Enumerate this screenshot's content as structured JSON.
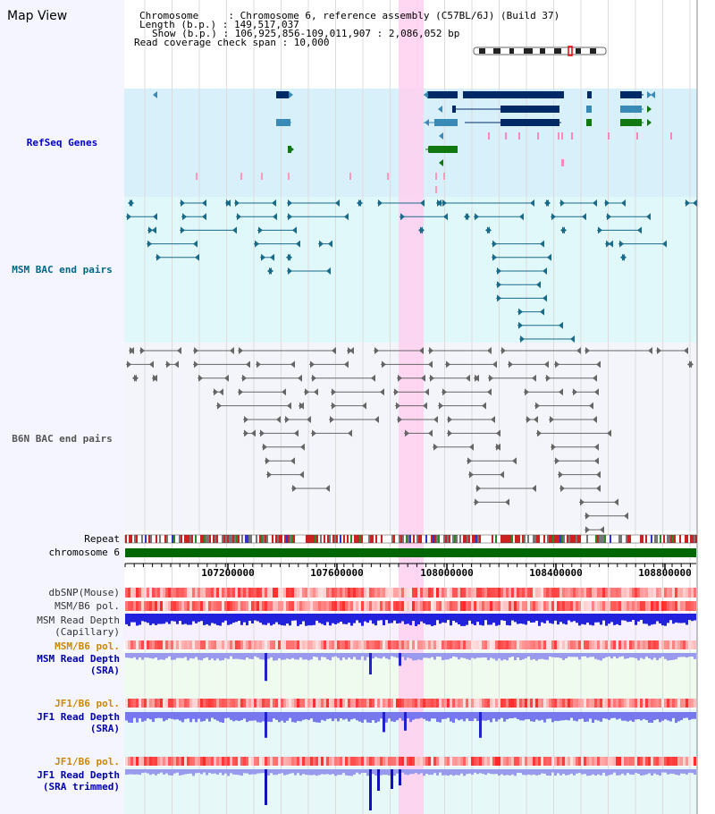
{
  "header": {
    "page_title": "Map View",
    "chrom_line": "Chromosome     : Chromosome 6, reference assembly (C57BL/6J) (Build 37)",
    "length_line": "Length (b.p.) : 149,517,037",
    "show_line": "Show (b.p.) : 106,925,856-109,011,907 : 2,086,052 bp",
    "span_line": "Read coverage check span : 10,000"
  },
  "tracks": {
    "refseq": {
      "label": "RefSeq Genes",
      "color": "#0000cc"
    },
    "msm_bac": {
      "label": "MSM BAC end pairs",
      "color": "#006688"
    },
    "b6n_bac": {
      "label": "B6N BAC end pairs",
      "color": "#555555"
    },
    "repeat": {
      "label": "Repeat"
    },
    "chromosome": {
      "label": "chromosome 6"
    },
    "dbsnp": {
      "label": "dbSNP(Mouse)"
    },
    "msm_b6_pol_1": {
      "label": "MSM/B6 pol."
    },
    "msm_depth_cap": {
      "label_1": "MSM Read Depth",
      "label_2": "(Capillary)"
    },
    "msm_b6_pol_2": {
      "label": "MSM/B6 pol.",
      "color": "#cc8800"
    },
    "msm_depth_sra": {
      "label_1": "MSM Read Depth",
      "label_2": "(SRA)",
      "color": "#0000aa"
    },
    "jf1_b6_pol_1": {
      "label": "JF1/B6 pol.",
      "color": "#cc8800"
    },
    "jf1_depth_sra": {
      "label_1": "JF1 Read Depth",
      "label_2": "(SRA)",
      "color": "#0000aa"
    },
    "jf1_b6_pol_2": {
      "label": "JF1/B6 pol.",
      "color": "#cc8800"
    },
    "jf1_depth_trim": {
      "label_1": "JF1 Read Depth",
      "label_2": "(SRA trimmed)",
      "color": "#0000aa"
    }
  },
  "axis": {
    "ticks": [
      "107200000",
      "107600000",
      "108000000",
      "108400000",
      "108800000"
    ]
  },
  "colors": {
    "refseq_bg": "#d8f0fa",
    "msm_bg": "#e0f8fa",
    "b6n_bg": "#f4f4fb",
    "highlight": "#ffd0f0",
    "chromosome": "#006600",
    "gene_dark": "#002a66",
    "gene_mid": "#3a8ab8",
    "gene_green": "#117711",
    "depth_blue": "#2222dd"
  }
}
